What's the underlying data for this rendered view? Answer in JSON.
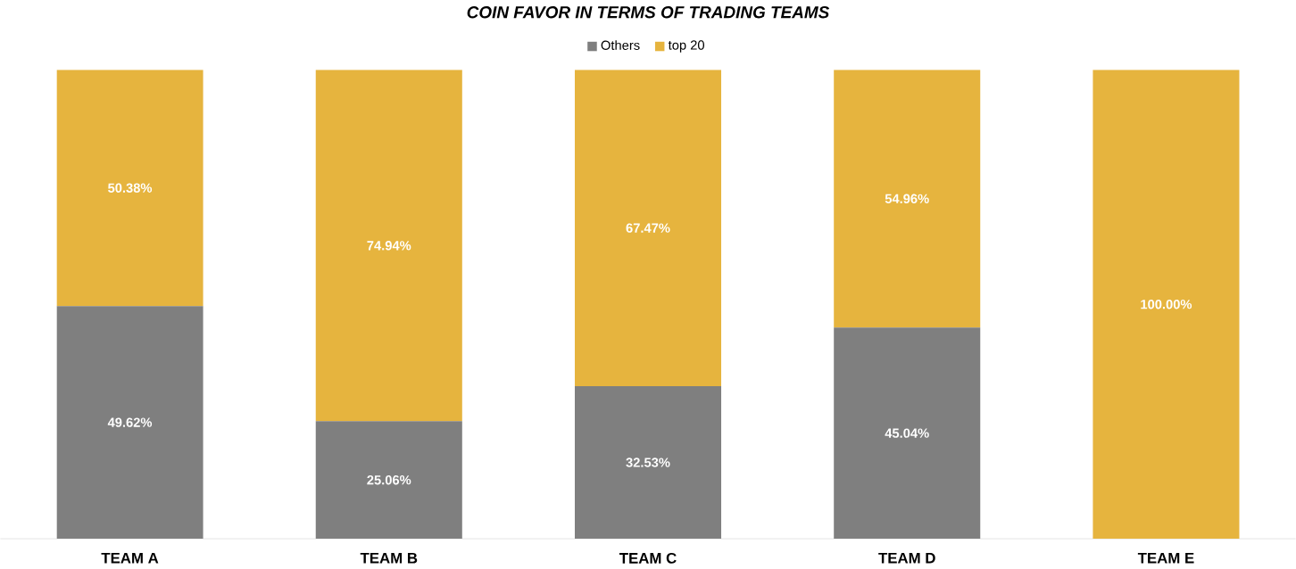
{
  "chart_data": {
    "type": "bar",
    "stacked": true,
    "title": "COIN FAVOR IN TERMS OF TRADING TEAMS",
    "categories": [
      "TEAM A",
      "TEAM B",
      "TEAM C",
      "TEAM D",
      "TEAM E"
    ],
    "series": [
      {
        "name": "Others",
        "color": "#7f7f7f",
        "values": [
          49.62,
          25.06,
          32.53,
          45.04,
          0
        ],
        "value_labels": [
          "49.62%",
          "25.06%",
          "32.53%",
          "45.04%",
          null
        ]
      },
      {
        "name": "top 20",
        "color": "#e6b43e",
        "values": [
          50.38,
          74.94,
          67.47,
          54.96,
          100
        ],
        "value_labels": [
          "50.38%",
          "74.94%",
          "67.47%",
          "54.96%",
          "100.00%"
        ]
      }
    ],
    "ylim": [
      0,
      100
    ],
    "legend": "top"
  }
}
